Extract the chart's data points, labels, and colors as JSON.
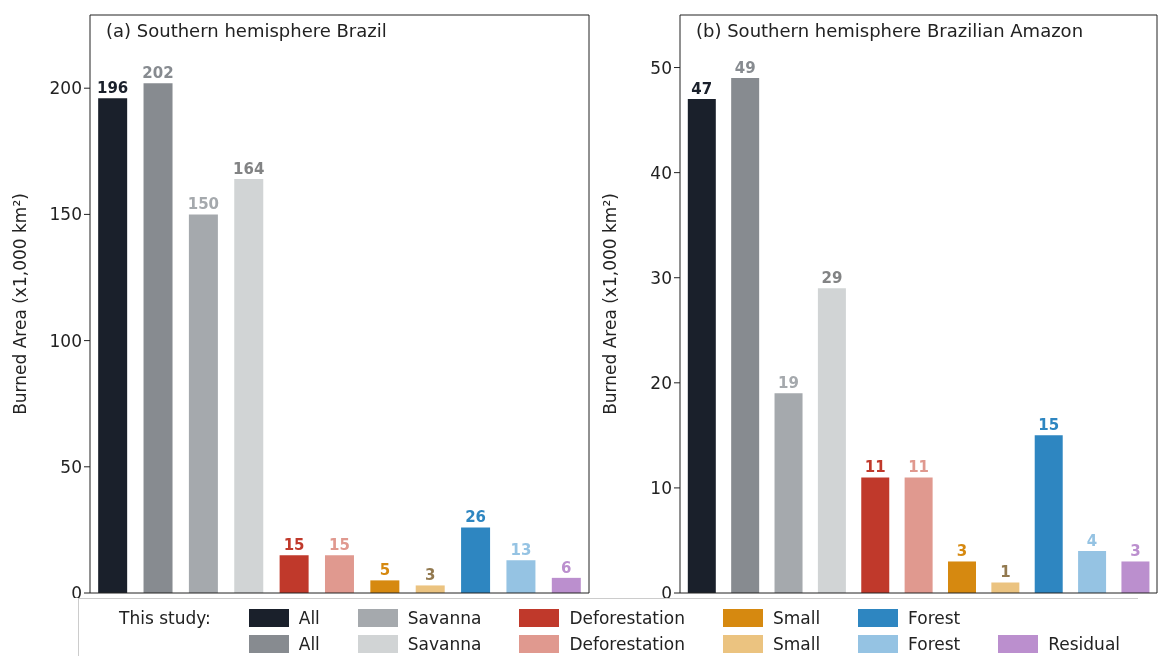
{
  "chart_data": [
    {
      "type": "bar",
      "title": "(a) Southern hemisphere Brazil",
      "ylabel": "Burned Area (x1,000 km²)",
      "categories": [
        null,
        null,
        null,
        null,
        null,
        null,
        null,
        null,
        null,
        null,
        null
      ],
      "stacked": true,
      "data_labels": true,
      "legend": "bottom",
      "legend_title": "This study:",
      "ylim": [
        0,
        229
      ],
      "yticks": [
        0,
        50,
        100,
        150,
        200
      ],
      "grid": false,
      "series": [
        {
          "name": "All",
          "color": "#1a202b",
          "values": [
            196,
            null,
            null,
            null,
            null,
            null,
            null,
            null,
            null,
            null,
            null
          ]
        },
        {
          "name": "All",
          "color": "#878b90",
          "values": [
            null,
            202,
            null,
            null,
            null,
            null,
            null,
            null,
            null,
            null,
            null
          ]
        },
        {
          "name": "Savanna",
          "color": "#a5a9ad",
          "values": [
            null,
            null,
            150,
            null,
            null,
            null,
            null,
            null,
            null,
            null,
            null
          ]
        },
        {
          "name": "Savanna",
          "color": "#d1d4d5",
          "values": [
            null,
            null,
            null,
            164,
            null,
            null,
            null,
            null,
            null,
            null,
            null
          ]
        },
        {
          "name": "Deforestation",
          "color": "#c0392b",
          "values": [
            null,
            null,
            null,
            null,
            15,
            null,
            null,
            null,
            null,
            null,
            null
          ]
        },
        {
          "name": "Deforestation",
          "color": "#e0998f",
          "values": [
            null,
            null,
            null,
            null,
            null,
            15,
            null,
            null,
            null,
            null,
            null
          ]
        },
        {
          "name": "Small",
          "color": "#d68910",
          "values": [
            null,
            null,
            null,
            null,
            null,
            null,
            5,
            null,
            null,
            null,
            null
          ]
        },
        {
          "name": "Small",
          "color": "#ebc380",
          "values": [
            null,
            null,
            null,
            null,
            null,
            null,
            null,
            3,
            null,
            null,
            null
          ]
        },
        {
          "name": "Forest",
          "color": "#2e86c1",
          "values": [
            null,
            null,
            null,
            null,
            null,
            null,
            null,
            null,
            26,
            null,
            null
          ]
        },
        {
          "name": "Forest",
          "color": "#95c3e3",
          "values": [
            null,
            null,
            null,
            null,
            null,
            null,
            null,
            null,
            null,
            13,
            null
          ]
        },
        {
          "name": "Residual",
          "color": "#bb8fce",
          "values": [
            null,
            null,
            null,
            null,
            null,
            null,
            null,
            null,
            null,
            null,
            6
          ]
        }
      ]
    },
    {
      "type": "bar",
      "title": "(b) Southern hemisphere Brazilian Amazon",
      "ylabel": "Burned Area (x1,000 km²)",
      "categories": [
        null,
        null,
        null,
        null,
        null,
        null,
        null,
        null,
        null,
        null,
        null
      ],
      "stacked": true,
      "data_labels": true,
      "ylim": [
        0,
        55
      ],
      "yticks": [
        0,
        10,
        20,
        30,
        40,
        50
      ],
      "grid": false,
      "series": [
        {
          "color": "#1a202b",
          "values": [
            47,
            null,
            null,
            null,
            null,
            null,
            null,
            null,
            null,
            null,
            null
          ]
        },
        {
          "color": "#878b90",
          "values": [
            null,
            49,
            null,
            null,
            null,
            null,
            null,
            null,
            null,
            null,
            null
          ]
        },
        {
          "color": "#a5a9ad",
          "values": [
            null,
            null,
            19,
            null,
            null,
            null,
            null,
            null,
            null,
            null,
            null
          ]
        },
        {
          "color": "#d1d4d5",
          "values": [
            null,
            null,
            null,
            29,
            null,
            null,
            null,
            null,
            null,
            null,
            null
          ]
        },
        {
          "color": "#c0392b",
          "values": [
            null,
            null,
            null,
            null,
            11,
            null,
            null,
            null,
            null,
            null,
            null
          ]
        },
        {
          "color": "#e0998f",
          "values": [
            null,
            null,
            null,
            null,
            null,
            11,
            null,
            null,
            null,
            null,
            null
          ]
        },
        {
          "color": "#d68910",
          "values": [
            null,
            null,
            null,
            null,
            null,
            null,
            3,
            null,
            null,
            null,
            null
          ]
        },
        {
          "color": "#ebc380",
          "values": [
            null,
            null,
            null,
            null,
            null,
            null,
            null,
            1,
            null,
            null,
            null
          ]
        },
        {
          "color": "#2e86c1",
          "values": [
            null,
            null,
            null,
            null,
            null,
            null,
            null,
            null,
            15,
            null,
            null
          ]
        },
        {
          "color": "#95c3e3",
          "values": [
            null,
            null,
            null,
            null,
            null,
            null,
            null,
            null,
            null,
            4,
            null
          ]
        },
        {
          "color": "#bb8fce",
          "values": [
            null,
            null,
            null,
            null,
            null,
            null,
            null,
            null,
            null,
            null,
            3
          ]
        }
      ]
    }
  ]
}
